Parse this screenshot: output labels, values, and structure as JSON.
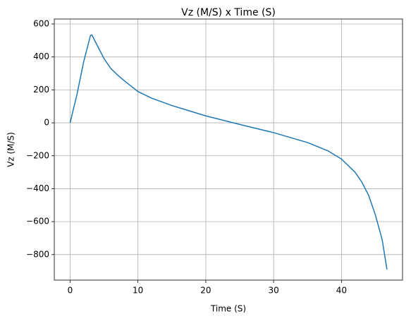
{
  "chart_data": {
    "type": "line",
    "title": "Vz (M/S) x Time (S)",
    "x_label": "Time (S)",
    "y_label": "Vz (M/S)",
    "x": [
      0,
      1,
      2,
      3,
      3.2,
      4,
      5,
      6,
      7,
      8,
      10,
      12,
      15,
      20,
      25,
      30,
      35,
      38,
      40,
      42,
      43,
      44,
      45,
      46,
      46.7
    ],
    "series": [
      {
        "name": "Vz",
        "color": "#1f77b4",
        "values": [
          0,
          170,
          370,
          530,
          534,
          470,
          390,
          330,
          290,
          255,
          190,
          150,
          105,
          42,
          -10,
          -60,
          -120,
          -170,
          -220,
          -300,
          -360,
          -440,
          -560,
          -710,
          -890
        ]
      }
    ],
    "xlim": [
      -2.33,
      49.0
    ],
    "ylim": [
      -955,
      630
    ],
    "xticks": [
      0,
      10,
      20,
      30,
      40
    ],
    "yticks": [
      {
        "value": -800,
        "label": "−800"
      },
      {
        "value": -600,
        "label": "−600"
      },
      {
        "value": -400,
        "label": "−400"
      },
      {
        "value": -200,
        "label": "−200"
      },
      0,
      200,
      400,
      600
    ],
    "grid": true
  }
}
